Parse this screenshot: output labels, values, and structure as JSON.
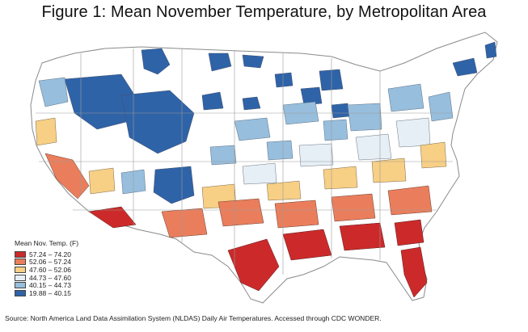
{
  "title": "Figure 1: Mean November Temperature, by Metropolitan Area",
  "legend": {
    "title": "Mean Nov. Temp. (F)",
    "items": [
      {
        "label": "57.24 – 74.20",
        "color": "#cc2a2a"
      },
      {
        "label": "52.06 – 57.24",
        "color": "#ea7e5c"
      },
      {
        "label": "47.60 – 52.06",
        "color": "#f7cf85"
      },
      {
        "label": "44.73 – 47.60",
        "color": "#e6eff6"
      },
      {
        "label": "40.15 – 44.73",
        "color": "#97bedd"
      },
      {
        "label": "19.88 – 40.15",
        "color": "#2f63a8"
      }
    ]
  },
  "source": "Source: North America Land Data Assimilation System (NLDAS) Daily Air Temperatures. Accessed through CDC WONDER."
}
